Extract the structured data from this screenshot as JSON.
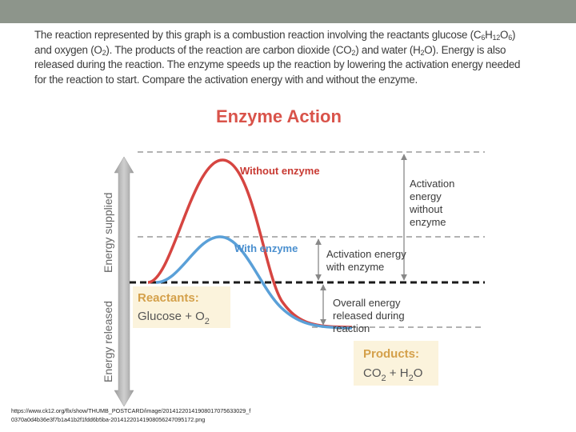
{
  "description": {
    "part1": "The reaction represented by this graph is a combustion reaction involving the reactants glucose (C",
    "sub_c": "6",
    "part2": "H",
    "sub_h": "12",
    "part3": "O",
    "sub_o": "6",
    "part4": ") and oxygen (O",
    "sub_o2": "2",
    "part5": "). The products of the reaction are carbon dioxide (CO",
    "sub_co2": "2",
    "part6": ") and water (H",
    "sub_h2o": "2",
    "part7": "O). Energy is also released during the reaction. The enzyme speeds up the reaction by lowering the activation energy needed for the reaction to start. Compare the activation energy with and without the enzyme."
  },
  "diagram": {
    "title": "Enzyme Action",
    "label_without": "Without enzyme",
    "label_with": "With enzyme",
    "axis_up": "Energy supplied",
    "axis_down": "Energy released",
    "activation_without": [
      "Activation",
      "energy",
      "without",
      "enzyme"
    ],
    "activation_with": [
      "Activation energy",
      "with enzyme"
    ],
    "overall": [
      "Overall energy",
      "released during",
      "reaction"
    ],
    "reactants_title": "Reactants:",
    "reactants_body": "Glucose + O",
    "reactants_sub": "2",
    "products_title": "Products:",
    "products_co": "CO",
    "products_co_sub": "2",
    "products_plus": " + H",
    "products_h_sub": "2",
    "products_o": "O"
  },
  "colors": {
    "without_curve": "#d64541",
    "with_curve": "#5aa0d8",
    "box_fill": "#fbf3dc",
    "title": "#d9534a"
  },
  "source_url": "https://www.ck12.org/flx/show/THUMB_POSTCARD/image/20141220141908017075633029_f0370a0d4b36e3f7b1a41b2f1fdd6b5ba-20141220141908056247095172.png"
}
